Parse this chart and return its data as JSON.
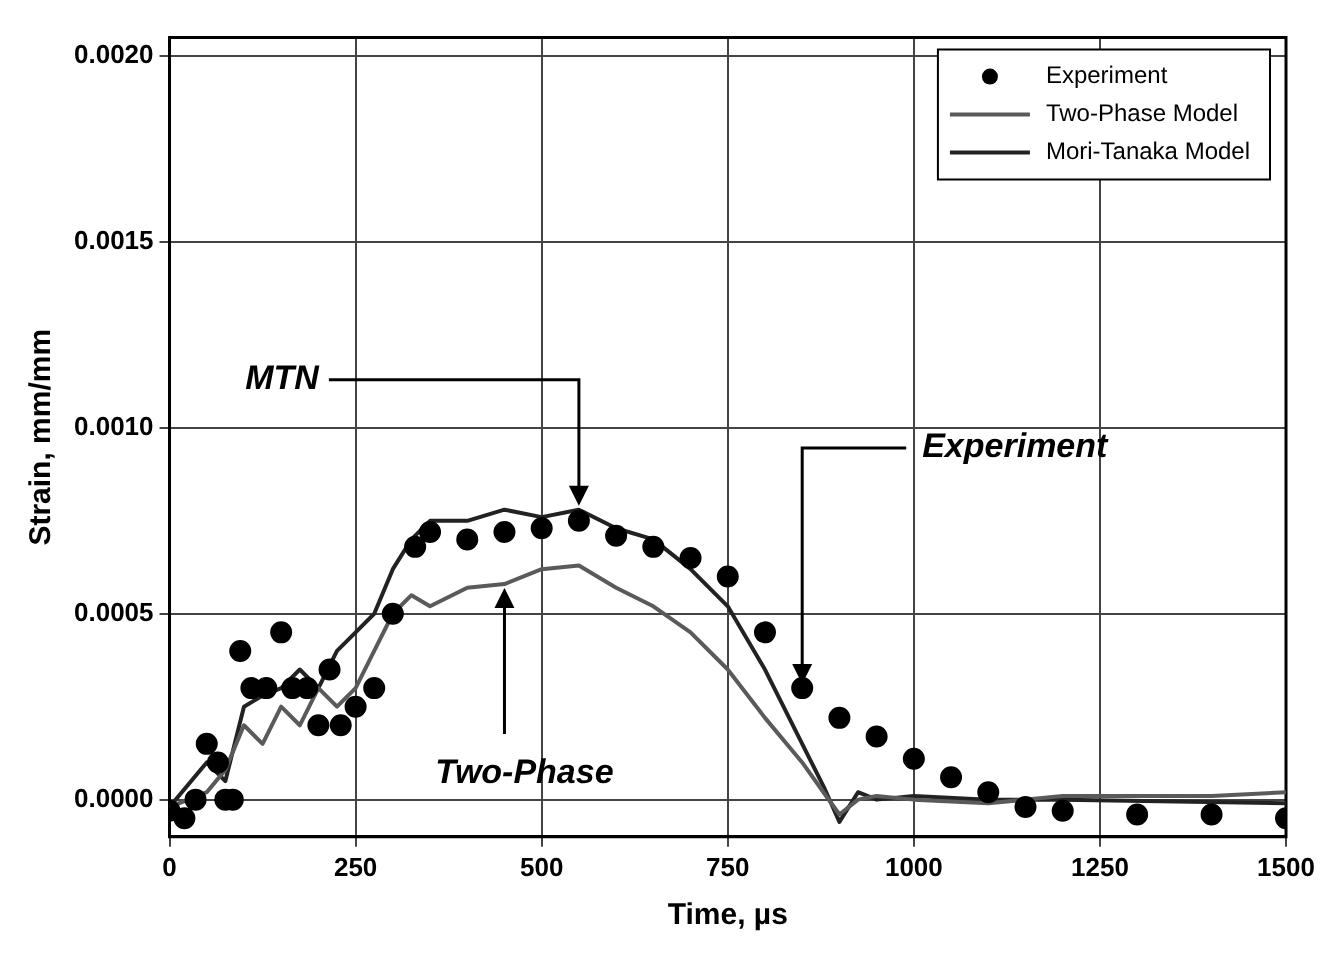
{
  "chart_data": {
    "type": "line",
    "xlabel": "Time, µs",
    "ylabel": "Strain, mm/mm",
    "xlim": [
      0,
      1500
    ],
    "ylim": [
      -0.0001,
      0.00205
    ],
    "xticks": [
      0,
      250,
      500,
      750,
      1000,
      1250,
      1500
    ],
    "yticks": [
      {
        "value": 0,
        "label": "0.0000"
      },
      {
        "value": 0.0005,
        "label": "0.0005"
      },
      {
        "value": 0.001,
        "label": "0.0010"
      },
      {
        "value": 0.0015,
        "label": "0.0015"
      },
      {
        "value": 0.002,
        "label": "0.0020"
      }
    ],
    "grid": true,
    "legend": "top right",
    "line_style": "solid",
    "series": [
      {
        "name": "Experiment",
        "type": "scatter",
        "marker": "circle",
        "color": "#000000",
        "x": [
          0,
          20,
          35,
          50,
          65,
          75,
          85,
          95,
          110,
          130,
          150,
          165,
          185,
          200,
          215,
          230,
          250,
          275,
          300,
          330,
          350,
          400,
          450,
          500,
          550,
          600,
          650,
          700,
          750,
          800,
          850,
          900,
          950,
          1000,
          1050,
          1100,
          1150,
          1200,
          1300,
          1400,
          1500
        ],
        "values": [
          -3e-05,
          -5e-05,
          0,
          0.00015,
          0.0001,
          0,
          0,
          0.0004,
          0.0003,
          0.0003,
          0.00045,
          0.0003,
          0.0003,
          0.0002,
          0.00035,
          0.0002,
          0.00025,
          0.0003,
          0.0005,
          0.00068,
          0.00072,
          0.0007,
          0.00072,
          0.00073,
          0.00075,
          0.00071,
          0.00068,
          0.00065,
          0.0006,
          0.00045,
          0.0003,
          0.00022,
          0.00017,
          0.00011,
          6e-05,
          2e-05,
          -2e-05,
          -3e-05,
          -4e-05,
          -4e-05,
          -5e-05
        ]
      },
      {
        "name": "Two-Phase Model",
        "type": "line",
        "color": "#5a5a5a",
        "x": [
          0,
          50,
          75,
          100,
          125,
          150,
          175,
          200,
          225,
          250,
          275,
          300,
          325,
          350,
          400,
          450,
          500,
          550,
          600,
          650,
          700,
          750,
          800,
          850,
          875,
          900,
          925,
          950,
          1000,
          1100,
          1200,
          1300,
          1400,
          1500
        ],
        "values": [
          -2e-05,
          2e-05,
          8e-05,
          0.0002,
          0.00015,
          0.00025,
          0.0002,
          0.0003,
          0.00025,
          0.0003,
          0.0004,
          0.0005,
          0.00055,
          0.00052,
          0.00057,
          0.00058,
          0.00062,
          0.00063,
          0.00057,
          0.00052,
          0.00045,
          0.00035,
          0.00022,
          0.0001,
          3e-05,
          -4e-05,
          0,
          1e-05,
          0,
          -1e-05,
          1e-05,
          1e-05,
          1e-05,
          2e-05
        ]
      },
      {
        "name": "Mori-Tanaka Model",
        "type": "line",
        "color": "#222222",
        "x": [
          0,
          50,
          75,
          100,
          125,
          150,
          175,
          200,
          225,
          250,
          275,
          300,
          325,
          350,
          400,
          450,
          500,
          550,
          600,
          650,
          700,
          750,
          800,
          850,
          880,
          900,
          925,
          950,
          1000,
          1100,
          1200,
          1500
        ],
        "values": [
          -2e-05,
          0.0001,
          5e-05,
          0.00025,
          0.00028,
          0.0003,
          0.00035,
          0.0003,
          0.0004,
          0.00045,
          0.0005,
          0.00062,
          0.0007,
          0.00075,
          0.00075,
          0.00078,
          0.00076,
          0.00078,
          0.00073,
          0.0007,
          0.00062,
          0.00052,
          0.00035,
          0.00015,
          3e-05,
          -6e-05,
          2e-05,
          0,
          1e-05,
          0,
          0,
          -1e-05
        ]
      }
    ],
    "annotations": [
      {
        "text": "MTN",
        "x": 550,
        "y": 0.00078
      },
      {
        "text": "Two-Phase",
        "x": 450,
        "y": 0.00058
      },
      {
        "text": "Experiment",
        "x": 850,
        "y": 0.0003
      }
    ]
  }
}
